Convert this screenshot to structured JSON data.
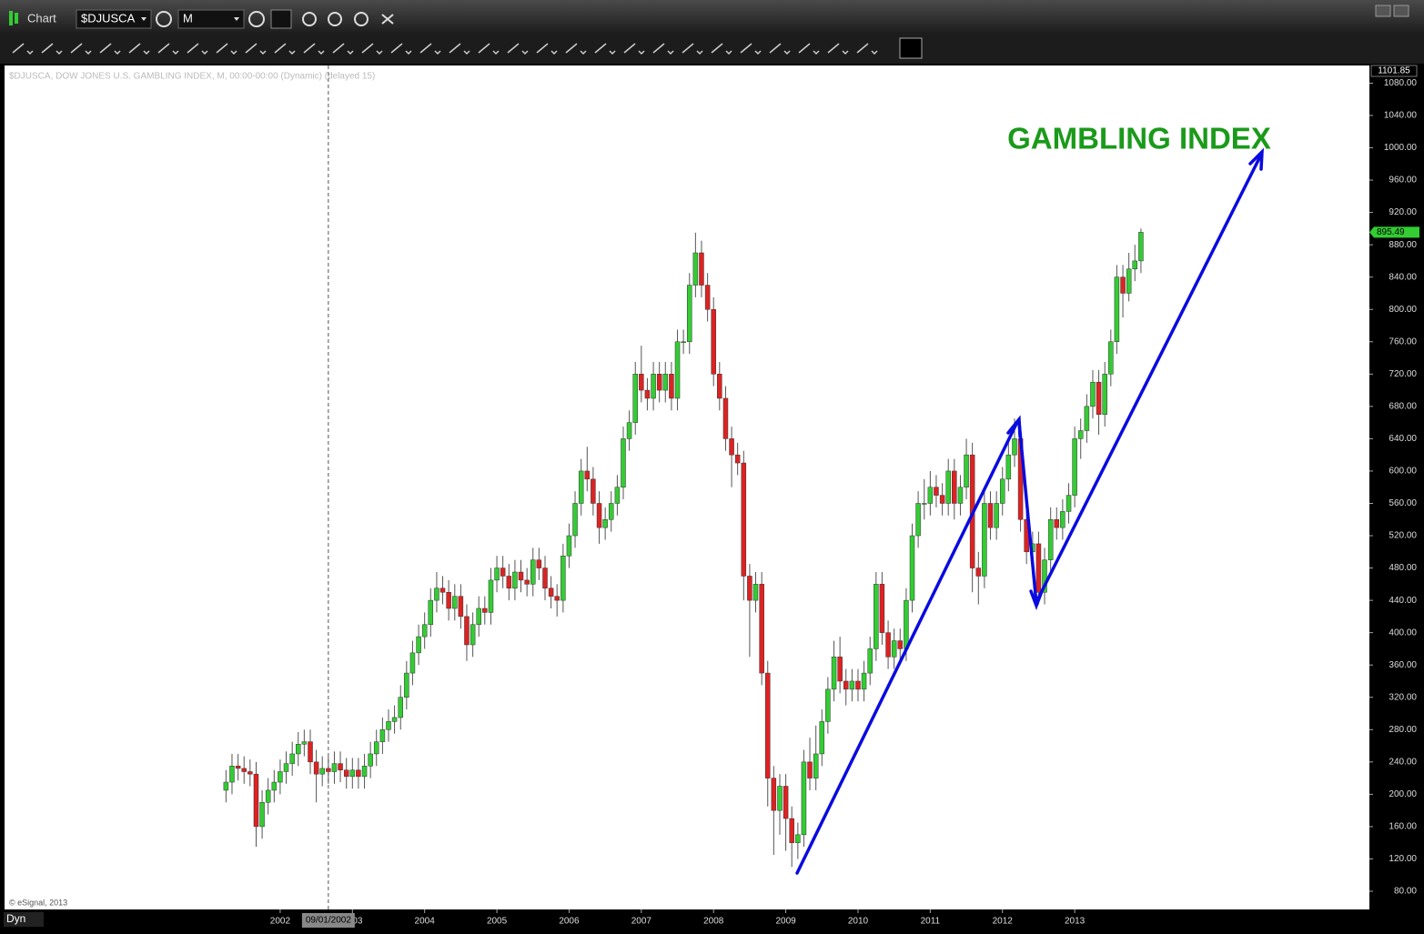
{
  "app": {
    "title": "Chart",
    "symbol": "$DJUSCA",
    "interval": "M",
    "mode": "Dyn"
  },
  "chart_data": {
    "type": "candlestick",
    "title": "GAMBLING INDEX",
    "subtitle": "$DJUSCA, DOW JONES U.S. GAMBLING INDEX, M, 00:00-00:00 (Dynamic) (delayed 15)",
    "source": "© eSignal, 2013",
    "up_color": "#33cc33",
    "down_color": "#dd2222",
    "crosshair": {
      "value": 2002.667,
      "label": "09/01/2002"
    },
    "xlim": [
      1998.184,
      2017.08
    ],
    "xticks": [
      2002,
      2003,
      2004,
      2005,
      2006,
      2007,
      2008,
      2009,
      2010,
      2011,
      2012,
      2013
    ],
    "ylim": [
      57.5,
      1101.85
    ],
    "yticks": [
      {
        "value": 80,
        "label": "80.00"
      },
      {
        "value": 120,
        "label": "120.00"
      },
      {
        "value": 160,
        "label": "160.00"
      },
      {
        "value": 200,
        "label": "200.00"
      },
      {
        "value": 240,
        "label": "240.00"
      },
      {
        "value": 280,
        "label": "280.00"
      },
      {
        "value": 320,
        "label": "320.00"
      },
      {
        "value": 360,
        "label": "360.00"
      },
      {
        "value": 400,
        "label": "400.00"
      },
      {
        "value": 440,
        "label": "440.00"
      },
      {
        "value": 480,
        "label": "480.00"
      },
      {
        "value": 520,
        "label": "520.00"
      },
      {
        "value": 560,
        "label": "560.00"
      },
      {
        "value": 600,
        "label": "600.00"
      },
      {
        "value": 640,
        "label": "640.00"
      },
      {
        "value": 680,
        "label": "680.00"
      },
      {
        "value": 720,
        "label": "720.00"
      },
      {
        "value": 760,
        "label": "760.00"
      },
      {
        "value": 800,
        "label": "800.00"
      },
      {
        "value": 840,
        "label": "840.00"
      },
      {
        "value": 880,
        "label": "880.00"
      },
      {
        "value": 920,
        "label": "920.00"
      },
      {
        "value": 960,
        "label": "960.00"
      },
      {
        "value": 1000,
        "label": "1000.00"
      },
      {
        "value": 1040,
        "label": "1040.00"
      },
      {
        "value": 1080,
        "label": "1080.00"
      }
    ],
    "x": [
      2001.25,
      2001.333,
      2001.417,
      2001.5,
      2001.583,
      2001.667,
      2001.75,
      2001.833,
      2001.917,
      2002,
      2002.083,
      2002.167,
      2002.25,
      2002.333,
      2002.417,
      2002.5,
      2002.583,
      2002.667,
      2002.75,
      2002.833,
      2002.917,
      2003,
      2003.083,
      2003.167,
      2003.25,
      2003.333,
      2003.417,
      2003.5,
      2003.583,
      2003.667,
      2003.75,
      2003.833,
      2003.917,
      2004,
      2004.083,
      2004.167,
      2004.25,
      2004.333,
      2004.417,
      2004.5,
      2004.583,
      2004.667,
      2004.75,
      2004.833,
      2004.917,
      2005,
      2005.083,
      2005.167,
      2005.25,
      2005.333,
      2005.417,
      2005.5,
      2005.583,
      2005.667,
      2005.75,
      2005.833,
      2005.917,
      2006,
      2006.083,
      2006.167,
      2006.25,
      2006.333,
      2006.417,
      2006.5,
      2006.583,
      2006.667,
      2006.75,
      2006.833,
      2006.917,
      2007,
      2007.083,
      2007.167,
      2007.25,
      2007.333,
      2007.417,
      2007.5,
      2007.583,
      2007.667,
      2007.75,
      2007.833,
      2007.917,
      2008,
      2008.083,
      2008.167,
      2008.25,
      2008.333,
      2008.417,
      2008.5,
      2008.583,
      2008.667,
      2008.75,
      2008.833,
      2008.917,
      2009,
      2009.083,
      2009.167,
      2009.25,
      2009.333,
      2009.417,
      2009.5,
      2009.583,
      2009.667,
      2009.75,
      2009.833,
      2009.917,
      2010,
      2010.083,
      2010.167,
      2010.25,
      2010.333,
      2010.417,
      2010.5,
      2010.583,
      2010.667,
      2010.75,
      2010.833,
      2010.917,
      2011,
      2011.083,
      2011.167,
      2011.25,
      2011.333,
      2011.417,
      2011.5,
      2011.583,
      2011.667,
      2011.75,
      2011.833,
      2011.917,
      2012,
      2012.083,
      2012.167,
      2012.25,
      2012.333,
      2012.417,
      2012.5,
      2012.583,
      2012.667,
      2012.75,
      2012.833,
      2012.917,
      2013,
      2013.083,
      2013.167,
      2013.25,
      2013.333,
      2013.417,
      2013.5,
      2013.583,
      2013.667,
      2013.75,
      2013.833,
      2013.917
    ],
    "open": [
      205,
      215,
      235,
      232,
      228,
      225,
      160,
      190,
      205,
      215,
      228,
      238,
      250,
      262,
      265,
      240,
      225,
      232,
      228,
      238,
      230,
      222,
      230,
      222,
      235,
      250,
      265,
      280,
      290,
      295,
      320,
      350,
      375,
      395,
      410,
      440,
      455,
      450,
      430,
      445,
      420,
      385,
      410,
      430,
      425,
      465,
      480,
      470,
      455,
      475,
      465,
      460,
      490,
      480,
      455,
      445,
      440,
      495,
      520,
      560,
      600,
      590,
      560,
      530,
      540,
      560,
      580,
      640,
      660,
      720,
      700,
      690,
      720,
      700,
      720,
      690,
      760,
      760,
      830,
      870,
      830,
      800,
      720,
      690,
      640,
      620,
      610,
      470,
      440,
      460,
      350,
      220,
      180,
      210,
      170,
      140,
      150,
      240,
      220,
      250,
      290,
      330,
      370,
      340,
      330,
      340,
      330,
      350,
      380,
      460,
      400,
      370,
      390,
      380,
      440,
      520,
      560,
      560,
      580,
      570,
      560,
      600,
      560,
      580,
      620,
      480,
      470,
      560,
      530,
      560,
      590,
      620,
      640,
      540,
      500,
      510,
      450,
      490,
      540,
      530,
      550,
      570,
      640,
      650,
      680,
      710,
      670,
      720,
      760,
      840,
      820,
      850,
      860
    ],
    "high": [
      230,
      250,
      250,
      247,
      243,
      240,
      205,
      220,
      230,
      243,
      253,
      265,
      277,
      280,
      280,
      255,
      247,
      247,
      253,
      253,
      245,
      245,
      245,
      250,
      265,
      280,
      295,
      305,
      310,
      335,
      365,
      390,
      410,
      425,
      455,
      475,
      470,
      465,
      460,
      460,
      435,
      425,
      445,
      445,
      480,
      495,
      495,
      485,
      490,
      490,
      480,
      505,
      505,
      495,
      470,
      460,
      510,
      535,
      575,
      615,
      630,
      605,
      575,
      555,
      575,
      595,
      655,
      675,
      735,
      755,
      715,
      735,
      735,
      735,
      735,
      775,
      775,
      845,
      895,
      885,
      845,
      815,
      735,
      705,
      655,
      635,
      625,
      485,
      475,
      475,
      365,
      235,
      225,
      225,
      185,
      165,
      255,
      270,
      285,
      305,
      345,
      390,
      395,
      355,
      355,
      355,
      365,
      395,
      475,
      475,
      415,
      405,
      405,
      455,
      535,
      575,
      590,
      600,
      595,
      585,
      615,
      615,
      595,
      640,
      635,
      500,
      575,
      575,
      575,
      605,
      635,
      665,
      655,
      555,
      525,
      525,
      505,
      555,
      555,
      565,
      585,
      655,
      665,
      695,
      725,
      725,
      735,
      775,
      855,
      855,
      870,
      880,
      900
    ],
    "low": [
      190,
      200,
      217,
      213,
      210,
      135,
      145,
      175,
      190,
      200,
      213,
      223,
      235,
      247,
      225,
      190,
      210,
      213,
      213,
      215,
      207,
      207,
      207,
      207,
      220,
      235,
      250,
      265,
      275,
      280,
      305,
      335,
      360,
      380,
      395,
      425,
      435,
      415,
      415,
      405,
      365,
      370,
      395,
      410,
      410,
      450,
      455,
      440,
      440,
      450,
      445,
      445,
      465,
      440,
      430,
      420,
      425,
      480,
      505,
      545,
      575,
      545,
      510,
      515,
      525,
      545,
      565,
      625,
      645,
      685,
      675,
      675,
      685,
      685,
      675,
      675,
      745,
      745,
      815,
      815,
      785,
      705,
      675,
      625,
      580,
      595,
      440,
      370,
      425,
      335,
      185,
      125,
      150,
      130,
      110,
      120,
      135,
      205,
      205,
      235,
      275,
      315,
      325,
      310,
      315,
      315,
      315,
      335,
      365,
      385,
      355,
      355,
      365,
      365,
      425,
      505,
      540,
      545,
      555,
      545,
      545,
      540,
      545,
      565,
      450,
      435,
      455,
      515,
      515,
      545,
      575,
      605,
      525,
      485,
      485,
      435,
      435,
      475,
      515,
      515,
      535,
      555,
      615,
      635,
      665,
      645,
      655,
      705,
      745,
      790,
      810,
      835,
      845
    ],
    "close": [
      215,
      235,
      232,
      228,
      225,
      160,
      190,
      205,
      215,
      228,
      238,
      250,
      262,
      265,
      240,
      225,
      232,
      228,
      238,
      230,
      222,
      230,
      222,
      235,
      250,
      265,
      280,
      290,
      295,
      320,
      350,
      375,
      395,
      410,
      440,
      455,
      450,
      430,
      445,
      420,
      385,
      410,
      430,
      425,
      465,
      480,
      470,
      455,
      475,
      465,
      460,
      490,
      480,
      455,
      445,
      440,
      495,
      520,
      560,
      600,
      590,
      560,
      530,
      540,
      560,
      580,
      640,
      660,
      720,
      700,
      690,
      720,
      700,
      720,
      690,
      760,
      760,
      830,
      870,
      830,
      800,
      720,
      690,
      640,
      620,
      610,
      470,
      440,
      460,
      350,
      220,
      180,
      210,
      170,
      140,
      150,
      240,
      220,
      250,
      290,
      330,
      370,
      340,
      330,
      340,
      330,
      350,
      380,
      460,
      400,
      370,
      390,
      380,
      440,
      520,
      560,
      560,
      580,
      570,
      560,
      600,
      560,
      580,
      620,
      480,
      470,
      560,
      530,
      560,
      590,
      620,
      640,
      540,
      500,
      510,
      450,
      490,
      540,
      530,
      550,
      570,
      640,
      650,
      680,
      710,
      670,
      720,
      760,
      840,
      820,
      850,
      860,
      895.49
    ]
  }
}
